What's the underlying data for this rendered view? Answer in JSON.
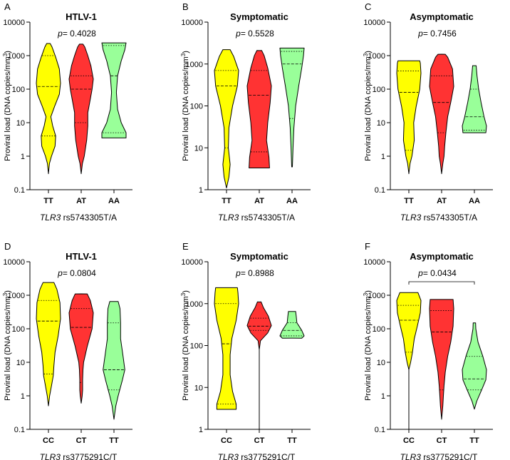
{
  "figure": {
    "colors": {
      "yellow": "#ffff00",
      "red": "#ff3333",
      "green": "#99ff99",
      "outline": "#000000"
    },
    "italic_gene": "TLR3"
  },
  "chart_data": [
    {
      "type": "violin",
      "panel_letter": "A",
      "title": "HTLV-1",
      "pvalue_prefix": "p",
      "pvalue_text": "= 0.4028",
      "ylabel_main": "Proviral load (DNA copies/mm",
      "ylabel_sup": "3",
      "ylabel_close": ")",
      "xlabel_gene": "TLR3",
      "xlabel_snp": " rs5743305T/A",
      "yscale": "log",
      "ylim": [
        0.1,
        10000
      ],
      "yticks": [
        0.1,
        1,
        10,
        100,
        1000,
        10000
      ],
      "ytick_labels": [
        "0.1",
        "1",
        "10",
        "100",
        "1000",
        "10000"
      ],
      "categories": [
        "TT",
        "AT",
        "AA"
      ],
      "series": [
        {
          "name": "TT",
          "color": "#ffff00",
          "min": 0.3,
          "max": 2300,
          "median": 120,
          "q1": 4,
          "q3": 1000,
          "profile": [
            [
              0.3,
              0
            ],
            [
              0.6,
              0.08
            ],
            [
              1,
              0.25
            ],
            [
              2,
              0.55
            ],
            [
              4,
              0.6
            ],
            [
              8,
              0.35
            ],
            [
              15,
              0.2
            ],
            [
              30,
              0.5
            ],
            [
              70,
              0.9
            ],
            [
              150,
              1
            ],
            [
              400,
              0.9
            ],
            [
              900,
              0.6
            ],
            [
              1800,
              0.3
            ],
            [
              2300,
              0.15
            ]
          ]
        },
        {
          "name": "AT",
          "color": "#ff3333",
          "min": 0.3,
          "max": 2200,
          "median": 100,
          "q1": 10,
          "q3": 250,
          "profile": [
            [
              0.3,
              0
            ],
            [
              0.6,
              0.1
            ],
            [
              1,
              0.25
            ],
            [
              3,
              0.45
            ],
            [
              8,
              0.55
            ],
            [
              20,
              0.55
            ],
            [
              50,
              0.75
            ],
            [
              100,
              0.9
            ],
            [
              200,
              1
            ],
            [
              500,
              0.8
            ],
            [
              1000,
              0.55
            ],
            [
              1800,
              0.3
            ],
            [
              2200,
              0.15
            ]
          ]
        },
        {
          "name": "AA",
          "color": "#99ff99",
          "min": 3.5,
          "max": 2400,
          "median": 250,
          "q1": 5,
          "q3": 2000,
          "profile": [
            [
              3.5,
              1
            ],
            [
              5,
              1
            ],
            [
              10,
              0.6
            ],
            [
              25,
              0.3
            ],
            [
              80,
              0.2
            ],
            [
              250,
              0.3
            ],
            [
              700,
              0.6
            ],
            [
              1500,
              0.9
            ],
            [
              2400,
              1
            ]
          ]
        }
      ]
    },
    {
      "type": "violin",
      "panel_letter": "B",
      "title": "Symptomatic",
      "pvalue_prefix": "p",
      "pvalue_text": "= 0.5528",
      "ylabel_main": "Proviral load (DNA copies/mm",
      "ylabel_sup": "3",
      "ylabel_close": ")",
      "xlabel_gene": "TLR3",
      "xlabel_snp": " rs5743305T/A",
      "yscale": "log",
      "ylim": [
        1,
        10000
      ],
      "yticks": [
        1,
        10,
        100,
        1000,
        10000
      ],
      "ytick_labels": [
        "1",
        "10",
        "100",
        "1000",
        "10000"
      ],
      "categories": [
        "TT",
        "AT",
        "AA"
      ],
      "series": [
        {
          "name": "TT",
          "color": "#ffff00",
          "min": 1.1,
          "max": 2200,
          "median": 300,
          "q1": 10,
          "q3": 700,
          "profile": [
            [
              1.1,
              0
            ],
            [
              2,
              0.2
            ],
            [
              4,
              0.3
            ],
            [
              10,
              0.15
            ],
            [
              30,
              0.2
            ],
            [
              100,
              0.5
            ],
            [
              300,
              0.9
            ],
            [
              700,
              1
            ],
            [
              1500,
              0.6
            ],
            [
              2200,
              0.3
            ]
          ]
        },
        {
          "name": "AT",
          "color": "#ff3333",
          "min": 3.3,
          "max": 2100,
          "median": 180,
          "q1": 8,
          "q3": 700,
          "profile": [
            [
              3.3,
              0.85
            ],
            [
              6,
              0.8
            ],
            [
              15,
              0.6
            ],
            [
              40,
              0.7
            ],
            [
              120,
              0.9
            ],
            [
              300,
              1
            ],
            [
              800,
              0.7
            ],
            [
              1600,
              0.4
            ],
            [
              2100,
              0.2
            ]
          ]
        },
        {
          "name": "AA",
          "color": "#99ff99",
          "min": 3.5,
          "max": 2400,
          "median": 1000,
          "q1": 50,
          "q3": 2000,
          "profile": [
            [
              3.5,
              0.03
            ],
            [
              10,
              0.08
            ],
            [
              30,
              0.15
            ],
            [
              100,
              0.3
            ],
            [
              300,
              0.55
            ],
            [
              800,
              0.8
            ],
            [
              1600,
              0.95
            ],
            [
              2400,
              1
            ]
          ]
        }
      ]
    },
    {
      "type": "violin",
      "panel_letter": "C",
      "title": "Asymptomatic",
      "pvalue_prefix": "p",
      "pvalue_text": "= 0.7456",
      "ylabel_main": "Proviral load (DNA copies/mm",
      "ylabel_sup": "3",
      "ylabel_close": ")",
      "xlabel_gene": "TLR3",
      "xlabel_snp": " rs5743305T/A",
      "yscale": "log",
      "ylim": [
        0.1,
        10000
      ],
      "yticks": [
        0.1,
        1,
        10,
        100,
        1000,
        10000
      ],
      "ytick_labels": [
        "0.1",
        "1",
        "10",
        "100",
        "1000",
        "10000"
      ],
      "categories": [
        "TT",
        "AT",
        "AA"
      ],
      "series": [
        {
          "name": "TT",
          "color": "#ffff00",
          "min": 0.3,
          "max": 700,
          "median": 80,
          "q1": 1.5,
          "q3": 350,
          "profile": [
            [
              0.3,
              0
            ],
            [
              0.6,
              0.1
            ],
            [
              1,
              0.25
            ],
            [
              3,
              0.45
            ],
            [
              10,
              0.4
            ],
            [
              30,
              0.6
            ],
            [
              100,
              0.9
            ],
            [
              300,
              1
            ],
            [
              600,
              0.95
            ],
            [
              700,
              0.9
            ]
          ]
        },
        {
          "name": "AT",
          "color": "#ff3333",
          "min": 0.3,
          "max": 1100,
          "median": 40,
          "q1": 5,
          "q3": 250,
          "profile": [
            [
              0.3,
              0
            ],
            [
              0.6,
              0.1
            ],
            [
              1,
              0.2
            ],
            [
              2,
              0.25
            ],
            [
              5,
              0.35
            ],
            [
              15,
              0.5
            ],
            [
              40,
              0.75
            ],
            [
              120,
              1
            ],
            [
              400,
              0.9
            ],
            [
              900,
              0.5
            ],
            [
              1100,
              0.3
            ]
          ]
        },
        {
          "name": "AA",
          "color": "#99ff99",
          "min": 5,
          "max": 500,
          "median": 15,
          "q1": 6,
          "q3": 100,
          "profile": [
            [
              5,
              0.95
            ],
            [
              8,
              1
            ],
            [
              15,
              0.8
            ],
            [
              40,
              0.55
            ],
            [
              100,
              0.35
            ],
            [
              250,
              0.22
            ],
            [
              500,
              0.15
            ]
          ]
        }
      ]
    },
    {
      "type": "violin",
      "panel_letter": "D",
      "title": "HTLV-1",
      "pvalue_prefix": "p",
      "pvalue_text": "= 0.0804",
      "ylabel_main": "Proviral load (DNA copies/mm",
      "ylabel_sup": "3",
      "ylabel_close": ")",
      "xlabel_gene": "TLR3",
      "xlabel_snp": " rs3775291C/T",
      "yscale": "log",
      "ylim": [
        0.1,
        10000
      ],
      "yticks": [
        0.1,
        1,
        10,
        100,
        1000,
        10000
      ],
      "ytick_labels": [
        "0.1",
        "1",
        "10",
        "100",
        "1000",
        "10000"
      ],
      "categories": [
        "CC",
        "CT",
        "TT"
      ],
      "series": [
        {
          "name": "CC",
          "color": "#ffff00",
          "min": 0.5,
          "max": 2400,
          "median": 170,
          "q1": 4.5,
          "q3": 700,
          "profile": [
            [
              0.5,
              0
            ],
            [
              1,
              0.1
            ],
            [
              2,
              0.25
            ],
            [
              4,
              0.4
            ],
            [
              8,
              0.45
            ],
            [
              20,
              0.55
            ],
            [
              60,
              0.8
            ],
            [
              200,
              1
            ],
            [
              600,
              0.95
            ],
            [
              1500,
              0.7
            ],
            [
              2400,
              0.45
            ]
          ]
        },
        {
          "name": "CT",
          "color": "#ff3333",
          "min": 0.6,
          "max": 1100,
          "median": 110,
          "q1": 2.5,
          "q3": 400,
          "profile": [
            [
              0.6,
              0
            ],
            [
              1,
              0.08
            ],
            [
              1.5,
              0.12
            ],
            [
              3,
              0.12
            ],
            [
              6,
              0.15
            ],
            [
              10,
              0.2
            ],
            [
              30,
              0.5
            ],
            [
              100,
              0.9
            ],
            [
              300,
              1
            ],
            [
              700,
              0.75
            ],
            [
              1100,
              0.5
            ]
          ]
        },
        {
          "name": "TT",
          "color": "#99ff99",
          "min": 0.2,
          "max": 650,
          "median": 6,
          "q1": 1.5,
          "q3": 150,
          "profile": [
            [
              0.2,
              0
            ],
            [
              0.5,
              0.15
            ],
            [
              1,
              0.35
            ],
            [
              3,
              0.7
            ],
            [
              6,
              0.9
            ],
            [
              15,
              0.75
            ],
            [
              50,
              0.55
            ],
            [
              150,
              0.55
            ],
            [
              400,
              0.5
            ],
            [
              650,
              0.35
            ]
          ]
        }
      ]
    },
    {
      "type": "violin",
      "panel_letter": "E",
      "title": "Symptomatic",
      "pvalue_prefix": "p",
      "pvalue_text": "= 0.8988",
      "ylabel_main": "Proviral load (DNA copies/mm",
      "ylabel_sup": "3",
      "ylabel_close": ")",
      "xlabel_gene": "TLR3",
      "xlabel_snp": " rs3775291C/T",
      "yscale": "log",
      "ylim": [
        1,
        10000
      ],
      "yticks": [
        1,
        10,
        100,
        1000,
        10000
      ],
      "ytick_labels": [
        "1",
        "10",
        "100",
        "1000",
        "10000"
      ],
      "categories": [
        "CC",
        "CT",
        "TT"
      ],
      "series": [
        {
          "name": "CC",
          "color": "#ffff00",
          "min": 3,
          "max": 2400,
          "median": 110,
          "q1": 4,
          "q3": 1000,
          "profile": [
            [
              3,
              0.8
            ],
            [
              4,
              0.8
            ],
            [
              8,
              0.5
            ],
            [
              20,
              0.3
            ],
            [
              60,
              0.3
            ],
            [
              150,
              0.45
            ],
            [
              400,
              0.8
            ],
            [
              1000,
              1
            ],
            [
              1800,
              0.95
            ],
            [
              2400,
              0.9
            ]
          ]
        },
        {
          "name": "CT",
          "color": "#ff3333",
          "min": 1,
          "max": 1100,
          "median": 290,
          "q1": 230,
          "q3": 450,
          "profile": [
            [
              1,
              0
            ],
            [
              80,
              0
            ],
            [
              130,
              0.1
            ],
            [
              200,
              0.7
            ],
            [
              300,
              1
            ],
            [
              500,
              0.75
            ],
            [
              800,
              0.35
            ],
            [
              1100,
              0.15
            ]
          ]
        },
        {
          "name": "TT",
          "color": "#99ff99",
          "min": 150,
          "max": 650,
          "median": 230,
          "q1": 170,
          "q3": 350,
          "profile": [
            [
              150,
              0.8
            ],
            [
              170,
              1
            ],
            [
              230,
              0.8
            ],
            [
              350,
              0.4
            ],
            [
              500,
              0.35
            ],
            [
              650,
              0.3
            ]
          ]
        }
      ]
    },
    {
      "type": "violin",
      "panel_letter": "F",
      "title": "Asymptomatic",
      "pvalue_prefix": "p",
      "pvalue_text": "= 0.0434",
      "ylabel_main": "Proviral load (DNA copies/mm",
      "ylabel_sup": "3",
      "ylabel_close": ")",
      "xlabel_gene": "TLR3",
      "xlabel_snp": " rs3775291C/T",
      "yscale": "log",
      "ylim": [
        0.1,
        10000
      ],
      "yticks": [
        0.1,
        1,
        10,
        100,
        1000,
        10000
      ],
      "ytick_labels": [
        "0.1",
        "1",
        "10",
        "100",
        "1000",
        "10000"
      ],
      "categories": [
        "CC",
        "CT",
        "TT"
      ],
      "bracket": {
        "from": "CC",
        "to": "TT"
      },
      "series": [
        {
          "name": "CC",
          "color": "#ffff00",
          "min": 0.1,
          "max": 1200,
          "median": 180,
          "q1": 20,
          "q3": 500,
          "profile": [
            [
              0.1,
              0
            ],
            [
              6,
              0
            ],
            [
              10,
              0.15
            ],
            [
              20,
              0.3
            ],
            [
              50,
              0.45
            ],
            [
              120,
              0.7
            ],
            [
              300,
              0.95
            ],
            [
              700,
              1
            ],
            [
              1200,
              0.75
            ]
          ]
        },
        {
          "name": "CT",
          "color": "#ff3333",
          "min": 0.2,
          "max": 750,
          "median": 80,
          "q1": 1.5,
          "q3": 350,
          "profile": [
            [
              0.2,
              0
            ],
            [
              0.5,
              0.1
            ],
            [
              1,
              0.15
            ],
            [
              2,
              0.2
            ],
            [
              5,
              0.3
            ],
            [
              15,
              0.5
            ],
            [
              40,
              0.75
            ],
            [
              120,
              0.95
            ],
            [
              400,
              1
            ],
            [
              750,
              0.95
            ]
          ]
        },
        {
          "name": "TT",
          "color": "#99ff99",
          "min": 0.4,
          "max": 150,
          "median": 3.2,
          "q1": 1.5,
          "q3": 15,
          "profile": [
            [
              0.4,
              0
            ],
            [
              0.7,
              0.2
            ],
            [
              1.5,
              0.6
            ],
            [
              3,
              0.95
            ],
            [
              6,
              1
            ],
            [
              15,
              0.7
            ],
            [
              40,
              0.3
            ],
            [
              100,
              0.12
            ],
            [
              150,
              0.1
            ]
          ]
        }
      ]
    }
  ]
}
